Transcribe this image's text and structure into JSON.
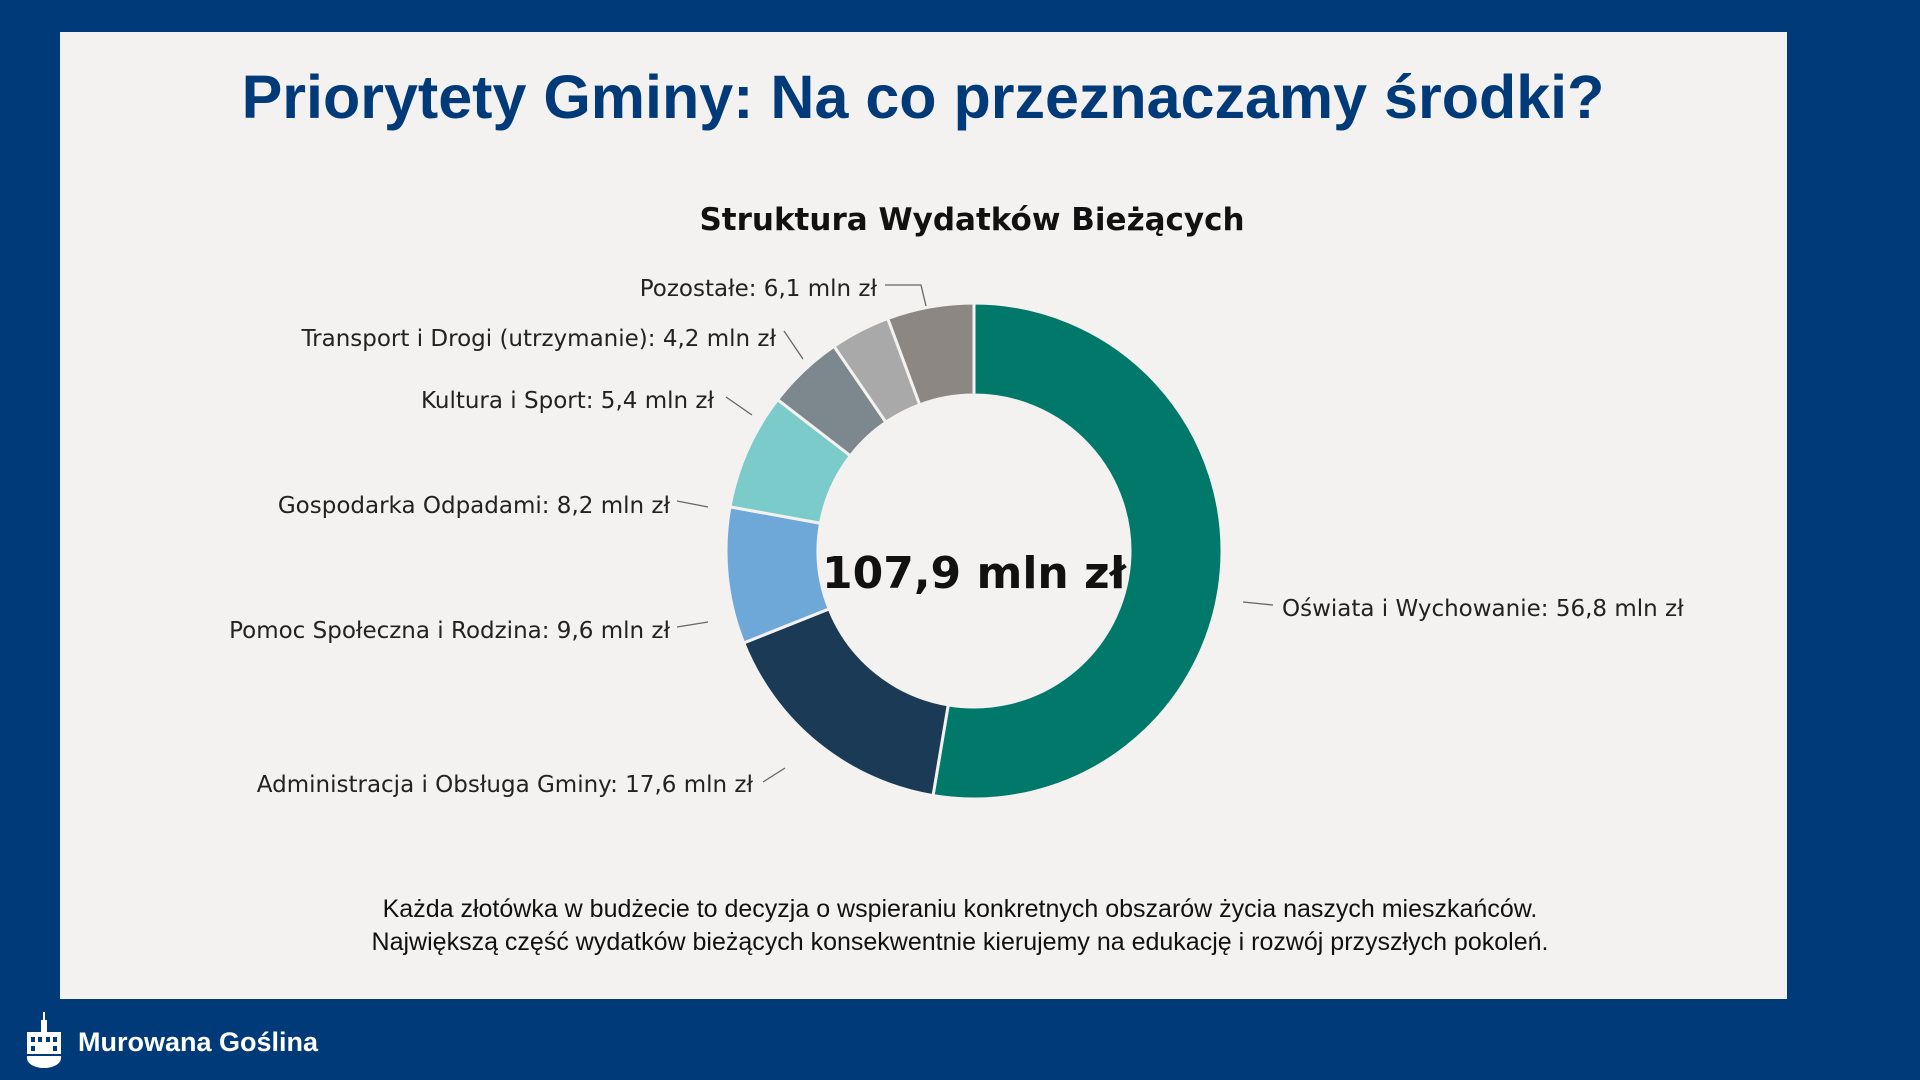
{
  "slide_title": "Priorytety Gminy: Na co przeznaczamy środki?",
  "chart_data": {
    "type": "pie",
    "variant": "donut",
    "title": "Struktura Wydatków Bieżących",
    "center_label": "107,9 mln zł",
    "unit": "mln zł",
    "total": 107.9,
    "slices": [
      {
        "name": "Oświata i Wychowanie",
        "value": 56.8,
        "label": "Oświata i Wychowanie: 56,8 mln zł",
        "color": "#00796b"
      },
      {
        "name": "Administracja i Obsługa Gminy",
        "value": 17.6,
        "label": "Administracja i Obsługa Gminy: 17,6 mln zł",
        "color": "#1a3a55"
      },
      {
        "name": "Pomoc Społeczna i Rodzina",
        "value": 9.6,
        "label": "Pomoc Społeczna i Rodzina: 9,6 mln zł",
        "color": "#6ea8d8"
      },
      {
        "name": "Gospodarka Odpadami",
        "value": 8.2,
        "label": "Gospodarka Odpadami: 8,2 mln zł",
        "color": "#7ccbcb"
      },
      {
        "name": "Kultura i Sport",
        "value": 5.4,
        "label": "Kultura i Sport: 5,4 mln zł",
        "color": "#7d878e"
      },
      {
        "name": "Transport i Drogi (utrzymanie)",
        "value": 4.2,
        "label": "Transport i Drogi (utrzymanie): 4,2 mln zł",
        "color": "#a9a9a9"
      },
      {
        "name": "Pozostałe",
        "value": 6.1,
        "label": "Pozostałe: 6,1 mln zł",
        "color": "#8c8782"
      }
    ]
  },
  "note_lines": [
    "Każda złotówka w budżecie to decyzja o wspieraniu konkretnych obszarów życia naszych mieszkańców.",
    "Największą część wydatków bieżących konsekwentnie kierujemy na edukację i rozwój przyszłych pokoleń."
  ],
  "brand": "Murowana Goślina"
}
